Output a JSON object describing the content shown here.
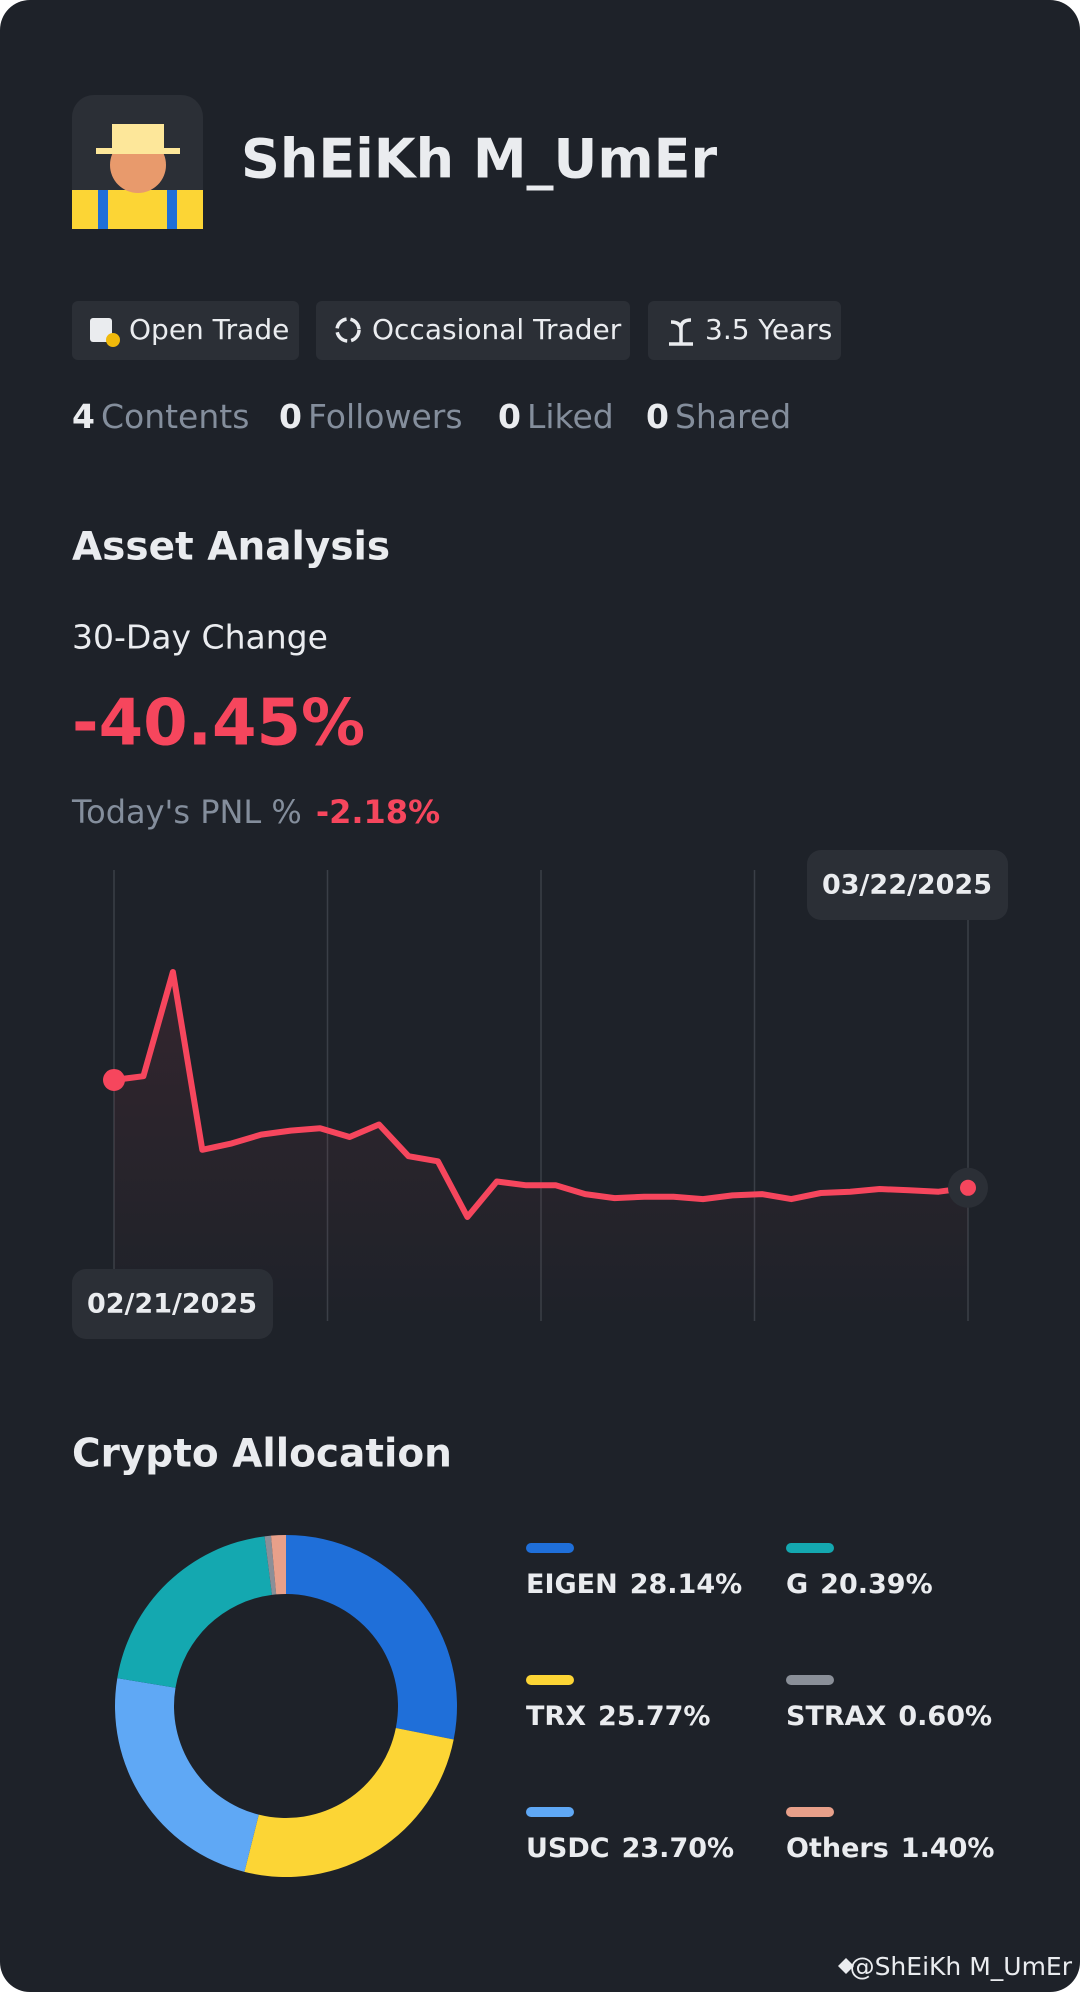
{
  "profile": {
    "name": "ShEiKh M_UmEr",
    "badges": [
      "Open Trade",
      "Occasional Trader",
      "3.5 Years"
    ],
    "stats": [
      {
        "count": 4,
        "label": "Contents"
      },
      {
        "count": 0,
        "label": "Followers"
      },
      {
        "count": 0,
        "label": "Liked"
      },
      {
        "count": 0,
        "label": "Shared"
      }
    ]
  },
  "asset_analysis": {
    "title": "Asset Analysis",
    "change_label": "30-Day Change",
    "change_value": "-40.45%",
    "pnl_label": "Today's PNL %",
    "pnl_value": "-2.18%"
  },
  "chart_data": [
    {
      "type": "line",
      "color": "#f6465d",
      "categories": [
        "02/21/2025",
        null,
        null,
        null,
        null,
        null,
        null,
        null,
        null,
        null,
        null,
        null,
        null,
        null,
        null,
        null,
        null,
        null,
        null,
        null,
        null,
        null,
        null,
        null,
        null,
        null,
        null,
        null,
        null,
        "03/22/2025"
      ],
      "values": [
        0,
        1.4,
        40.5,
        -26.2,
        -23.8,
        -20.5,
        -19.0,
        -18.1,
        -21.4,
        -16.7,
        -28.6,
        -30.5,
        -51.4,
        -38.1,
        -39.5,
        -39.5,
        -42.8,
        -44.3,
        -43.8,
        -43.8,
        -44.7,
        -43.3,
        -42.8,
        -44.7,
        -42.4,
        -41.9,
        -40.9,
        -41.4,
        -41.9,
        -40.45
      ]
    },
    {
      "type": "pie",
      "title": "Crypto Allocation",
      "categories": [
        "EIGEN",
        "TRX",
        "USDC",
        "G",
        "STRAX",
        "Others"
      ],
      "values": [
        28.14,
        25.77,
        23.7,
        20.39,
        0.6,
        1.4
      ],
      "value_labels": [
        "28.14%",
        "25.77%",
        "23.70%",
        "20.39%",
        "0.60%",
        "1.40%"
      ],
      "colors": [
        "#1f6fd9",
        "#fcd535",
        "#5fa8f5",
        "#14a8b0",
        "#8a8f98",
        "#e8a08a"
      ]
    }
  ],
  "watermark": "@ShEiKh M_UmEr"
}
